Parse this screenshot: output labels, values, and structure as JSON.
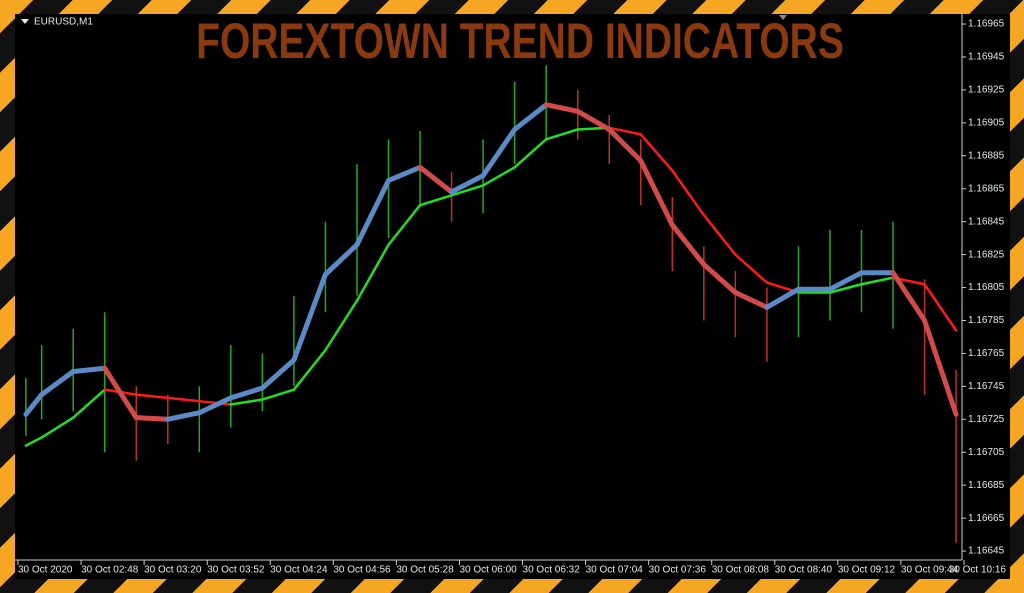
{
  "chart_data": {
    "type": "line",
    "title": "FOREXTOWN TREND INDICATORS",
    "symbol": "EURUSD,M1",
    "x": [
      4,
      12,
      28,
      44,
      60,
      76,
      92,
      108,
      124,
      140,
      156,
      172,
      188,
      204,
      220,
      236,
      252,
      268,
      284,
      300,
      316,
      332,
      348,
      364,
      380,
      396,
      412,
      428,
      444,
      460,
      476
    ],
    "xlim": [
      0,
      479
    ],
    "xticks": [
      {
        "value": 0,
        "label": "30 Oct 2020"
      },
      {
        "value": 32,
        "label": "30 Oct 02:48"
      },
      {
        "value": 64,
        "label": "30 Oct 03:20"
      },
      {
        "value": 96,
        "label": "30 Oct 03:52"
      },
      {
        "value": 128,
        "label": "30 Oct 04:24"
      },
      {
        "value": 160,
        "label": "30 Oct 04:56"
      },
      {
        "value": 192,
        "label": "30 Oct 05:28"
      },
      {
        "value": 224,
        "label": "30 Oct 06:00"
      },
      {
        "value": 256,
        "label": "30 Oct 06:32"
      },
      {
        "value": 288,
        "label": "30 Oct 07:04"
      },
      {
        "value": 320,
        "label": "30 Oct 07:36"
      },
      {
        "value": 352,
        "label": "30 Oct 08:08"
      },
      {
        "value": 384,
        "label": "30 Oct 08:40"
      },
      {
        "value": 416,
        "label": "30 Oct 09:12"
      },
      {
        "value": 448,
        "label": "30 Oct 09:44"
      },
      {
        "value": 480,
        "label": "30 Oct 10:16"
      }
    ],
    "ylim": [
      1.1664,
      1.1697
    ],
    "yticks": [
      1.16965,
      1.16945,
      1.16925,
      1.16905,
      1.16885,
      1.16865,
      1.16845,
      1.16825,
      1.16805,
      1.16785,
      1.16765,
      1.16745,
      1.16725,
      1.16705,
      1.16685,
      1.16665,
      1.16645
    ],
    "bars": {
      "up_color": "#1faa1f",
      "down_color": "#c0302a",
      "high": [
        1.1675,
        1.1677,
        1.1678,
        1.1679,
        1.16745,
        1.1674,
        1.16745,
        1.1677,
        1.16765,
        1.168,
        1.16845,
        1.1688,
        1.16895,
        1.169,
        1.16875,
        1.16895,
        1.1693,
        1.1694,
        1.16925,
        1.1691,
        1.16895,
        1.1686,
        1.1683,
        1.16815,
        1.16805,
        1.1683,
        1.1684,
        1.1684,
        1.16845,
        1.1681,
        1.16755
      ],
      "low": [
        1.16715,
        1.16725,
        1.1673,
        1.16705,
        1.167,
        1.1671,
        1.16705,
        1.1672,
        1.1673,
        1.16745,
        1.1679,
        1.168,
        1.16835,
        1.16855,
        1.16845,
        1.1685,
        1.1688,
        1.16895,
        1.16895,
        1.1688,
        1.16855,
        1.16815,
        1.16785,
        1.16775,
        1.1676,
        1.16775,
        1.16785,
        1.1679,
        1.1678,
        1.1674,
        1.1665
      ]
    },
    "series": [
      {
        "up_color": "#22dd22",
        "down_color": "#ff1a1a",
        "values": [
          1.16709,
          1.16714,
          1.16726,
          1.16743,
          1.1674,
          1.16738,
          1.16736,
          1.16734,
          1.16737,
          1.16743,
          1.16767,
          1.16797,
          1.16831,
          1.16855,
          1.16861,
          1.16867,
          1.16878,
          1.16895,
          1.16901,
          1.16902,
          1.16898,
          1.16876,
          1.16849,
          1.16825,
          1.16808,
          1.16802,
          1.16802,
          1.16807,
          1.16811,
          1.16807,
          1.16779
        ]
      },
      {
        "up_color": "#5b8ac6",
        "down_color": "#d24a4a",
        "values": [
          1.16728,
          1.1674,
          1.16754,
          1.16756,
          1.16726,
          1.16725,
          1.16729,
          1.16738,
          1.16744,
          1.16761,
          1.16813,
          1.16831,
          1.1687,
          1.16878,
          1.16863,
          1.16873,
          1.16901,
          1.16916,
          1.16912,
          1.16901,
          1.16882,
          1.16843,
          1.16819,
          1.16802,
          1.16793,
          1.16804,
          1.16804,
          1.16814,
          1.16814,
          1.16785,
          1.16728
        ]
      }
    ]
  }
}
